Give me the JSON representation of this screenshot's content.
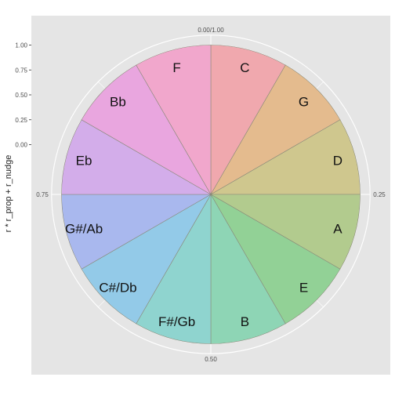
{
  "chart_data": {
    "type": "pie",
    "coord": "polar",
    "ylabel": "r * r_prop + r_nudge",
    "yticks": [
      {
        "value": 1.0,
        "label": "1.00"
      },
      {
        "value": 0.75,
        "label": "0.75"
      },
      {
        "value": 0.5,
        "label": "0.50"
      },
      {
        "value": 0.25,
        "label": "0.25"
      },
      {
        "value": 0.0,
        "label": "0.00"
      }
    ],
    "theta_ticks": [
      {
        "value": 0.0,
        "label": "0.00/1.00"
      },
      {
        "value": 0.25,
        "label": "0.25"
      },
      {
        "value": 0.5,
        "label": "0.50"
      },
      {
        "value": 0.75,
        "label": "0.75"
      }
    ],
    "ylim": [
      -0.5,
      1.1
    ],
    "slice_radius": 1.0,
    "label_radius": 0.82,
    "grid": true,
    "background_color": "#e5e5e5",
    "categories": [
      "C",
      "G",
      "D",
      "A",
      "E",
      "B",
      "F#/Gb",
      "C#/Db",
      "G#/Ab",
      "Eb",
      "Bb",
      "F"
    ],
    "values": [
      1,
      1,
      1,
      1,
      1,
      1,
      1,
      1,
      1,
      1,
      1,
      1
    ],
    "colors": [
      "#f0a8ae",
      "#e4bb8e",
      "#cfc78e",
      "#b2cb8e",
      "#92d196",
      "#8ed5b5",
      "#8fd4cf",
      "#93cae8",
      "#a9b8ee",
      "#d3adea",
      "#e9a6df",
      "#f1a7cc"
    ]
  }
}
